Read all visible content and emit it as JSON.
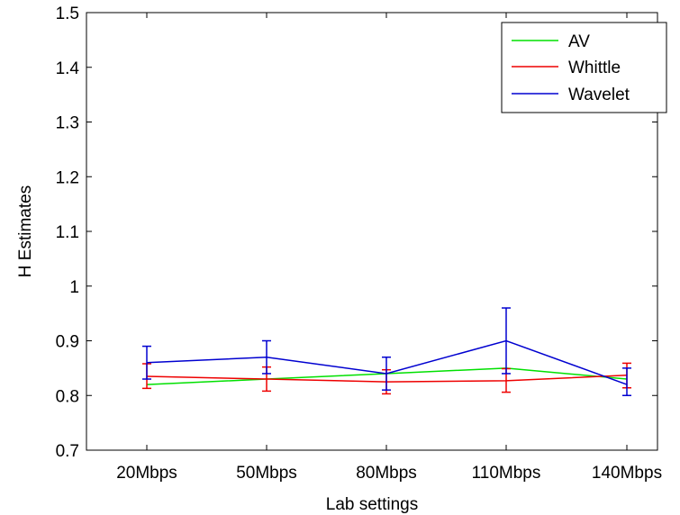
{
  "chart_data": {
    "type": "line",
    "categories": [
      "20Mbps",
      "50Mbps",
      "80Mbps",
      "110Mbps",
      "140Mbps"
    ],
    "xlabel": "Lab settings",
    "ylabel": "H Estimates",
    "ylim": [
      0.7,
      1.5
    ],
    "yticks": [
      "0.7",
      "0.8",
      "0.9",
      "1",
      "1.1",
      "1.2",
      "1.3",
      "1.4",
      "1.5"
    ],
    "grid": false,
    "legend_position": "top-right",
    "series": [
      {
        "name": "AV",
        "color": "#00e000",
        "values": [
          0.82,
          0.83,
          0.84,
          0.85,
          0.83
        ],
        "error_low": [
          null,
          null,
          null,
          null,
          null
        ],
        "error_high": [
          null,
          null,
          null,
          null,
          null
        ]
      },
      {
        "name": "Whittle",
        "color": "#ee0000",
        "values": [
          0.835,
          0.83,
          0.825,
          0.827,
          0.837
        ],
        "error_low": [
          0.813,
          0.808,
          0.803,
          0.806,
          0.814
        ],
        "error_high": [
          0.858,
          0.852,
          0.847,
          0.849,
          0.859
        ]
      },
      {
        "name": "Wavelet",
        "color": "#0000d0",
        "values": [
          0.86,
          0.87,
          0.84,
          0.9,
          0.82
        ],
        "error_low": [
          0.83,
          0.84,
          0.81,
          0.84,
          0.8
        ],
        "error_high": [
          0.89,
          0.9,
          0.87,
          0.96,
          0.85
        ]
      }
    ]
  }
}
